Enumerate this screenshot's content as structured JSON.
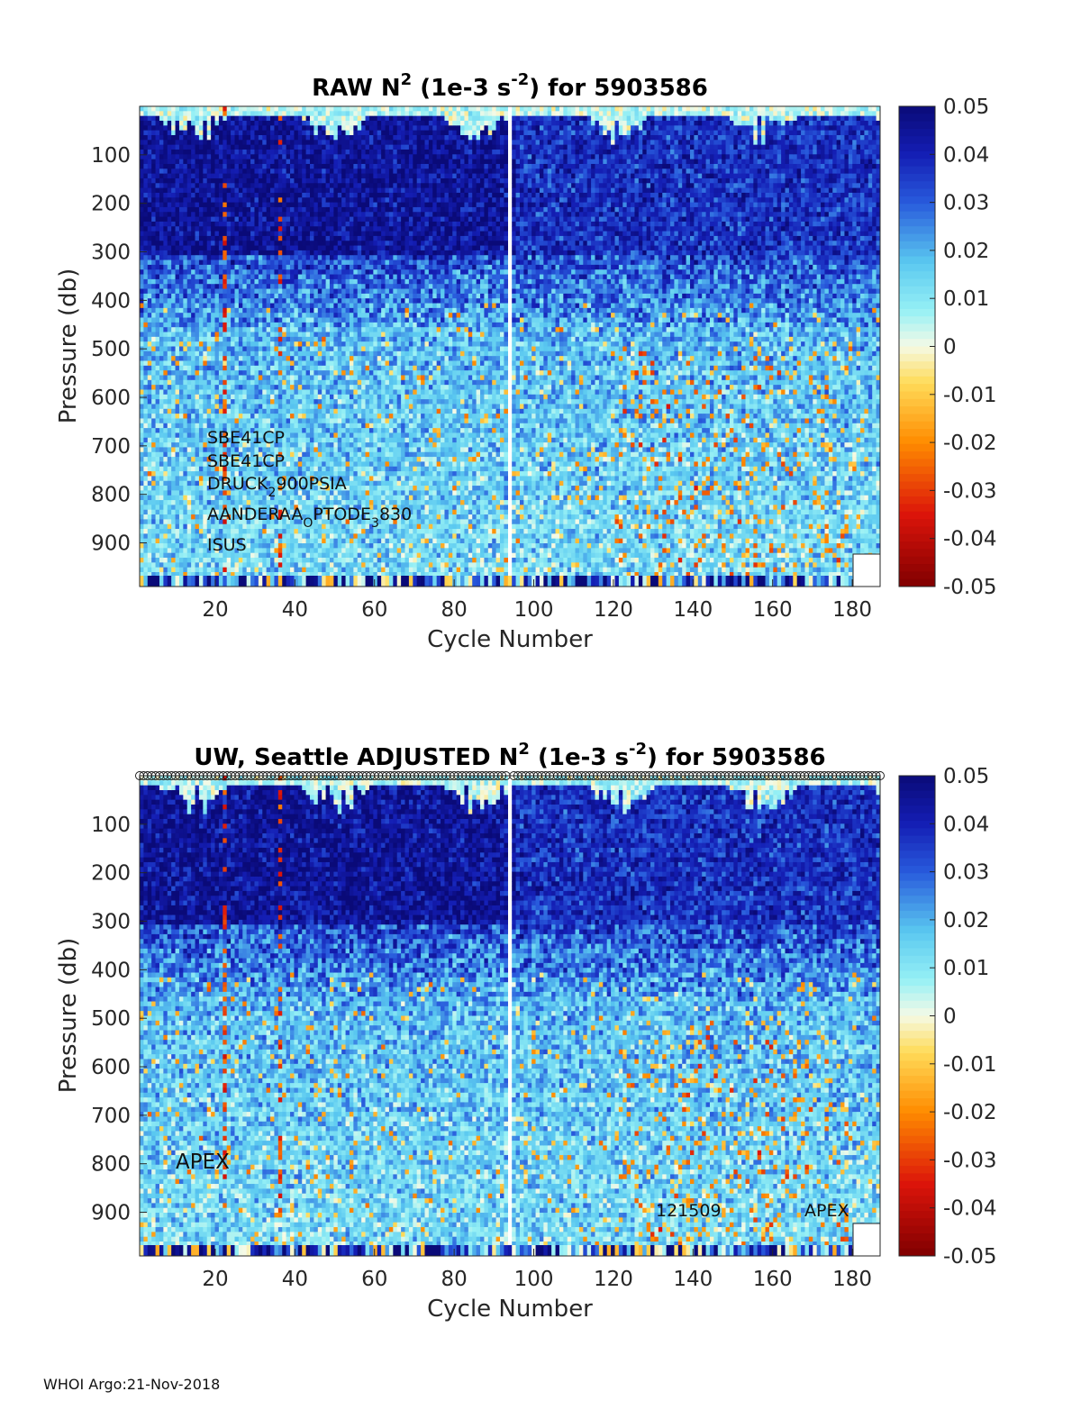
{
  "chart_data": [
    {
      "type": "heatmap",
      "title_main": "RAW N",
      "title_sup": "2",
      "title_mid": " (1e-3 s",
      "title_sup2": "-2",
      "title_end": ") for 5903586",
      "xlabel": "Cycle Number",
      "ylabel": "Pressure (db)",
      "xlim": [
        1,
        187
      ],
      "ylim": [
        0,
        990
      ],
      "xticks": [
        20,
        40,
        60,
        80,
        100,
        120,
        140,
        160,
        180
      ],
      "yticks": [
        100,
        200,
        300,
        400,
        500,
        600,
        700,
        800,
        900
      ],
      "gap_cycle": 94,
      "colorbar": {
        "min": -0.05,
        "max": 0.05,
        "ticks": [
          "0.05",
          "0.04",
          "0.03",
          "0.02",
          "0.01",
          "0",
          "-0.01",
          "-0.02",
          "-0.03",
          "-0.04",
          "-0.05"
        ]
      },
      "annotations": [
        "SBE41CP",
        "SBE41CP",
        "DRUCK",
        "2",
        "900PSIA",
        "AANDERAA",
        "O",
        "PTODE",
        "3",
        "830",
        "ISUS"
      ],
      "seed": 7
    },
    {
      "type": "heatmap",
      "title_main": "UW, Seattle  ADJUSTED N",
      "title_sup": "2",
      "title_mid": " (1e-3 s",
      "title_sup2": "-2",
      "title_end": ") for 5903586",
      "xlabel": "Cycle Number",
      "ylabel": "Pressure (db)",
      "xlim": [
        1,
        187
      ],
      "ylim": [
        0,
        990
      ],
      "xticks": [
        20,
        40,
        60,
        80,
        100,
        120,
        140,
        160,
        180
      ],
      "yticks": [
        100,
        200,
        300,
        400,
        500,
        600,
        700,
        800,
        900
      ],
      "gap_cycle": 94,
      "top_markers": true,
      "colorbar": {
        "min": -0.05,
        "max": 0.05,
        "ticks": [
          "0.05",
          "0.04",
          "0.03",
          "0.02",
          "0.01",
          "0",
          "-0.01",
          "-0.02",
          "-0.03",
          "-0.04",
          "-0.05"
        ]
      },
      "annotations": [
        "APEX",
        "121509",
        "APEX"
      ],
      "seed": 13
    }
  ],
  "footer": "WHOI Argo:21-Nov-2018",
  "colors": {
    "deep_blue": "#0a0f8a",
    "blue": "#1f3fd6",
    "cyan": "#6fe3f0",
    "light": "#e8f8f0",
    "yellow": "#ffd85a",
    "orange": "#ff8c00",
    "red": "#cc1010",
    "dark_red": "#800000"
  }
}
